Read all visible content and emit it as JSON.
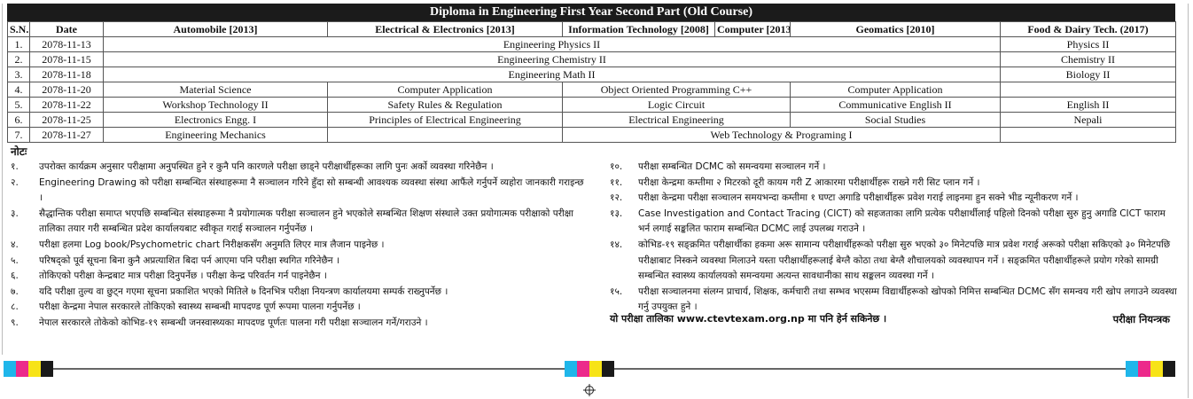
{
  "title": "Diploma in Engineering First Year Second Part (Old Course)",
  "columns": {
    "sn": "S.N.",
    "date": "Date",
    "auto": "Automobile [2013]",
    "elec": "Electrical & Electronics [2013]",
    "it": "Information Technology [2008]",
    "comp": "Computer [2013]",
    "geo": "Geomatics [2010]",
    "food": "Food & Dairy Tech. (2017)"
  },
  "rows": [
    {
      "sn": "1.",
      "date": "2078-11-13",
      "common": "Engineering Physics II",
      "food": "Physics II"
    },
    {
      "sn": "2.",
      "date": "2078-11-15",
      "common": "Engineering Chemistry II",
      "food": "Chemistry II"
    },
    {
      "sn": "3.",
      "date": "2078-11-18",
      "common": "Engineering Math II",
      "food": "Biology II"
    },
    {
      "sn": "4.",
      "date": "2078-11-20",
      "auto": "Material Science",
      "elec": "Computer Application",
      "itcomp": "Object Oriented Programming C++",
      "geo": "Computer Application",
      "food": ""
    },
    {
      "sn": "5.",
      "date": "2078-11-22",
      "auto": "Workshop Technology II",
      "elec": "Safety Rules & Regulation",
      "itcomp": "Logic Circuit",
      "geo": "Communicative English II",
      "food": "English II"
    },
    {
      "sn": "6.",
      "date": "2078-11-25",
      "auto": "Electronics Engg. I",
      "elec": "Principles of Electrical Engineering",
      "itcomp": "Electrical Engineering",
      "geo": "Social Studies",
      "food": "Nepali"
    },
    {
      "sn": "7.",
      "date": "2078-11-27",
      "auto": "Engineering Mechanics",
      "elec": "",
      "itcomp": "Web Technology & Programing I",
      "geo": "",
      "food": ""
    }
  ],
  "notes_heading": "नोटः",
  "notes_left": [
    {
      "n": "१.",
      "t": "उपरोक्त कार्यक्रम अनुसार परीक्षामा अनुपस्थित हुने र कुनै पनि कारणले परीक्षा छाड्ने परीक्षार्थीहरूका लागि पुनः अर्को व्यवस्था गरिनेछैन ।"
    },
    {
      "n": "२.",
      "t": "Engineering Drawing को परीक्षा सम्बन्धित संस्थाहरूमा नै सञ्चालन गरिने हुँदा सो सम्बन्धी आवश्यक व्यवस्था संस्था आफैंले गर्नुपर्ने व्यहोरा जानकारी गराइन्छ ।"
    },
    {
      "n": "३.",
      "t": "सैद्धान्तिक परीक्षा समाप्त भएपछि सम्बन्धित संस्थाहरूमा नै प्रयोगात्मक परीक्षा सञ्चालन हुने भएकोले सम्बन्धित शिक्षण संस्थाले उक्त प्रयोगात्मक परीक्षाको परीक्षा तालिका तयार गरी सम्बन्धित प्रदेश कार्यालयबाट स्वीकृत गराई सञ्चालन गर्नुपर्नेछ ।"
    },
    {
      "n": "४.",
      "t": "परीक्षा हलमा Log book/Psychometric chart निरीक्षकसँग अनुमति लिएर मात्र लैजान पाइनेछ ।"
    },
    {
      "n": "५.",
      "t": "परिषद्को पूर्व सूचना बिना कुनै अप्रत्याशित बिदा पर्न आएमा पनि परीक्षा स्थगित गरिनेछैन ।"
    },
    {
      "n": "६.",
      "t": "तोकिएको परीक्षा केन्द्रबाट मात्र परीक्षा दिनुपर्नेछ । परीक्षा केन्द्र परिवर्तन गर्न पाइनेछैन ।"
    },
    {
      "n": "७.",
      "t": "यदि परीक्षा तुल्य वा छुट्न गएमा सूचना प्रकाशित भएको मितिले ७ दिनभित्र परीक्षा नियन्त्रण कार्यालयमा सम्पर्क राख्नुपर्नेछ ।"
    },
    {
      "n": "८.",
      "t": "परीक्षा केन्द्रमा नेपाल सरकारले तोकिएको स्वास्थ्य सम्बन्धी मापदण्ड पूर्ण रूपमा पालना गर्नुपर्नेछ ।"
    },
    {
      "n": "९.",
      "t": "नेपाल सरकारले तोकेको कोभिड-१९ सम्बन्धी जनस्वास्थ्यका मापदण्ड पूर्णतः पालना गरी परीक्षा सञ्चालन गर्ने/गराउने ।"
    }
  ],
  "notes_right": [
    {
      "n": "१०.",
      "t": "परीक्षा सम्बन्धित DCMC को समन्वयमा सञ्चालन गर्ने ।"
    },
    {
      "n": "११.",
      "t": "परीक्षा केन्द्रमा कम्तीमा २ मिटरको दूरी कायम गरी Z आकारमा परीक्षार्थीहरू राख्ने गरी सिट प्लान गर्ने ।"
    },
    {
      "n": "१२.",
      "t": "परीक्षा केन्द्रमा परीक्षा सञ्चालन समयभन्दा कम्तीमा १ घण्टा अगाडि परीक्षार्थीहरू प्रवेश गराई लाइनमा हुन सक्ने भीड न्यूनीकरण गर्ने ।"
    },
    {
      "n": "१३.",
      "t": "Case Investigation and Contact Tracing (CICT) को सहजताका लागि प्रत्येक परीक्षार्थीलाई पहिलो दिनको परीक्षा सुरु हुनु अगाडि CICT फाराम भर्न लगाई सङ्कलित फाराम सम्बन्धित DCMC लाई उपलब्ध गराउने ।"
    },
    {
      "n": "१४.",
      "t": "कोभिड-१९ सङ्क्रमित परीक्षार्थीका हकमा अरू सामान्य परीक्षार्थीहरूको परीक्षा सुरु भएको ३० मिनेटपछि मात्र प्रवेश गराई अरूको परीक्षा सकिएको ३० मिनेटपछि परीक्षाबाट निस्कने व्यवस्था मिलाउने यस्ता परीक्षार्थीहरूलाई बेग्लै कोठा तथा बेग्लै शौचालयको व्यवस्थापन गर्ने । सङ्क्रमित परीक्षार्थीहरूले प्रयोग गरेको सामग्री सम्बन्धित स्वास्थ्य कार्यालयको समन्वयमा अत्यन्त सावधानीका साथ सङ्कलन व्यवस्था गर्ने ।"
    },
    {
      "n": "१५.",
      "t": "परीक्षा सञ्चालनमा संलग्न प्राचार्य, शिक्षक, कर्मचारी तथा सम्भव भएसम्म विद्यार्थीहरूको खोपको निमित्त सम्बन्धित DCMC सँग समन्वय गरी खोप लगाउने व्यवस्था गर्नु उपयुक्त हुने ।"
    }
  ],
  "website_line": "यो परीक्षा तालिका www.ctevtexam.org.np मा पनि हेर्न सकिनेछ ।",
  "signature": "परीक्षा नियन्त्रक",
  "print_marks": {
    "colors": [
      "#1fb6ea",
      "#ec2a8b",
      "#f7e317",
      "#1a1a1a"
    ]
  }
}
